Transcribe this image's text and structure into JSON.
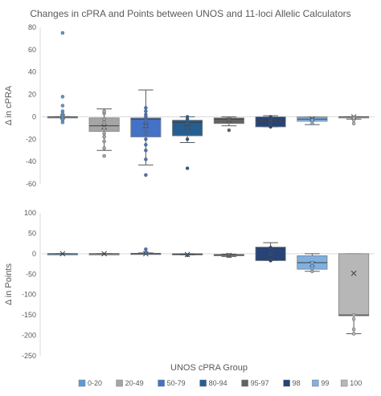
{
  "chart_data": [
    {
      "type": "box",
      "title": "Changes in cPRA and Points between UNOS and 11-loci Allelic Calculators",
      "ylabel": "Δ in cPRA",
      "xlabel": "",
      "ylim": [
        -60,
        80
      ],
      "yticks": [
        -60,
        -40,
        -20,
        0,
        20,
        40,
        60,
        80
      ],
      "grid": false,
      "categories": [
        "0-20",
        "20-49",
        "50-79",
        "80-94",
        "95-97",
        "98",
        "99",
        "100"
      ],
      "boxes": [
        {
          "group": "0-20",
          "q1": 0,
          "median": 0,
          "q3": 0,
          "mean": 0,
          "whisker_low": 0,
          "whisker_high": 0,
          "outliers": [
            75,
            18,
            10,
            5,
            3,
            1,
            -1,
            -3,
            -5
          ]
        },
        {
          "group": "20-49",
          "q1": -13,
          "median": -8,
          "q3": -1,
          "mean": -9,
          "whisker_low": -30,
          "whisker_high": 7,
          "outliers": [
            -35,
            -28,
            -22,
            -18,
            -15,
            -10,
            -5,
            -2,
            3,
            5
          ]
        },
        {
          "group": "50-79",
          "q1": -18,
          "median": -2,
          "q3": -1,
          "mean": -8,
          "whisker_low": -43,
          "whisker_high": 24,
          "outliers": [
            -52,
            -38,
            -30,
            -25,
            -20,
            -15,
            -12,
            -8,
            -5,
            -3,
            0,
            2,
            5,
            8
          ]
        },
        {
          "group": "80-94",
          "q1": -17,
          "median": -5,
          "q3": -3,
          "mean": -9,
          "whisker_low": -23,
          "whisker_high": 0,
          "outliers": [
            -46,
            -20,
            -15,
            -10,
            -6,
            -2,
            0
          ]
        },
        {
          "group": "95-97",
          "q1": -6,
          "median": -2,
          "q3": -1,
          "mean": -3,
          "whisker_low": -8,
          "whisker_high": 0,
          "outliers": [
            -12,
            -4,
            -2
          ]
        },
        {
          "group": "98",
          "q1": -9,
          "median": -3,
          "q3": 0,
          "mean": -4,
          "whisker_low": -9,
          "whisker_high": 1,
          "outliers": [
            -9,
            -5,
            -2,
            0
          ]
        },
        {
          "group": "99",
          "q1": -4,
          "median": -2,
          "q3": 0,
          "mean": -2,
          "whisker_low": -7,
          "whisker_high": 0,
          "outliers": [
            -6,
            -3
          ]
        },
        {
          "group": "100",
          "q1": -1,
          "median": 0,
          "q3": 0,
          "mean": 0,
          "whisker_low": -2,
          "whisker_high": 0,
          "outliers": [
            -6,
            -3,
            -1
          ]
        }
      ]
    },
    {
      "type": "box",
      "title": "",
      "ylabel": "Δ in Points",
      "xlabel": "UNOS cPRA Group",
      "ylim": [
        -250,
        100
      ],
      "yticks": [
        -250,
        -200,
        -150,
        -100,
        -50,
        0,
        50,
        100
      ],
      "grid": false,
      "categories": [
        "0-20",
        "20-49",
        "50-79",
        "80-94",
        "95-97",
        "98",
        "99",
        "100"
      ],
      "boxes": [
        {
          "group": "0-20",
          "q1": 0,
          "median": 0,
          "q3": 0,
          "mean": 0,
          "whisker_low": 0,
          "whisker_high": 0,
          "outliers": []
        },
        {
          "group": "20-49",
          "q1": 0,
          "median": 0,
          "q3": 0,
          "mean": 0,
          "whisker_low": 0,
          "whisker_high": 0,
          "outliers": []
        },
        {
          "group": "50-79",
          "q1": 0,
          "median": 0,
          "q3": 1,
          "mean": 0,
          "whisker_low": -1,
          "whisker_high": 2,
          "outliers": [
            11,
            3
          ]
        },
        {
          "group": "80-94",
          "q1": -2,
          "median": -1,
          "q3": 0,
          "mean": -2,
          "whisker_low": -3,
          "whisker_high": 0,
          "outliers": [
            -4
          ]
        },
        {
          "group": "95-97",
          "q1": -5,
          "median": -3,
          "q3": -2,
          "mean": -4,
          "whisker_low": -7,
          "whisker_high": -1,
          "outliers": [
            -6,
            -3
          ]
        },
        {
          "group": "98",
          "q1": -17,
          "median": 15,
          "q3": 16,
          "mean": -5,
          "whisker_low": -17,
          "whisker_high": 27,
          "outliers": [
            -17,
            0,
            15
          ]
        },
        {
          "group": "99",
          "q1": -38,
          "median": -22,
          "q3": -5,
          "mean": -25,
          "whisker_low": -43,
          "whisker_high": 0,
          "outliers": [
            -43,
            -35,
            -30,
            -22
          ]
        },
        {
          "group": "100",
          "q1": -152,
          "median": -150,
          "q3": 0,
          "mean": -48,
          "whisker_low": -196,
          "whisker_high": 0,
          "outliers": [
            -196,
            -185,
            -160,
            -150
          ]
        }
      ]
    }
  ],
  "legend": {
    "position": "bottom",
    "items": [
      {
        "label": "0-20",
        "color": "#5b9bd5"
      },
      {
        "label": "20-49",
        "color": "#a5a5a5"
      },
      {
        "label": "50-79",
        "color": "#4472c4"
      },
      {
        "label": "80-94",
        "color": "#255e91"
      },
      {
        "label": "95-97",
        "color": "#636363"
      },
      {
        "label": "98",
        "color": "#264478"
      },
      {
        "label": "99",
        "color": "#7fb0e0"
      },
      {
        "label": "100",
        "color": "#b7b7b7"
      }
    ]
  }
}
